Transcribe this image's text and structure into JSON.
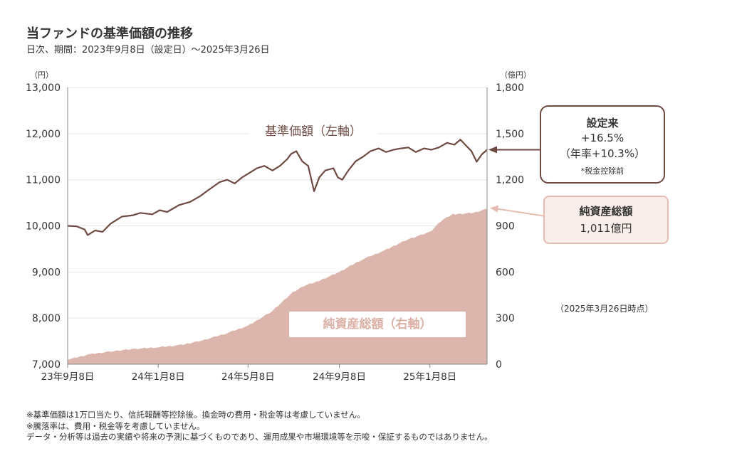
{
  "title": "当ファンドの基準価額の推移",
  "subtitle": "日次、期間：2023年9月8日（設定日）～2025年3月26日",
  "unit_left": "（円）",
  "unit_right": "（億円）",
  "series_label_nav": "基準価額（左軸）",
  "series_label_aum": "純資産総額（右軸）",
  "callout_return": {
    "heading": "設定来",
    "value": "+16.5%",
    "annualized": "（年率+10.3%）",
    "note": "*税金控除前"
  },
  "callout_aum": {
    "heading": "純資産総額",
    "value": "1,011億円"
  },
  "as_of": "（2025年3月26日時点）",
  "footnotes": [
    "※基準価額は1万口当たり、信託報酬等控除後。換金時の費用・税金等は考慮していません。",
    "※騰落率は、費用・税金等を考慮していません。",
    "データ・分析等は過去の実績や将来の予測に基づくものであり、運用成果や市場環境等を示唆・保証するものではありません。"
  ],
  "colors": {
    "nav_line": "#6e4a42",
    "aum_area": "#dcb6ac",
    "grid": "#e6e6e6"
  },
  "chart_data": {
    "type": "line",
    "x_ticks": [
      "23年9月8日",
      "24年1月8日",
      "24年5月8日",
      "24年9月8日",
      "25年1月8日"
    ],
    "x_tick_dates": [
      "2023-09-08",
      "2024-01-08",
      "2024-05-08",
      "2024-09-08",
      "2025-01-08"
    ],
    "x_range": [
      "2023-09-08",
      "2025-03-26"
    ],
    "y_left": {
      "label": "（円）",
      "ylim": [
        7000,
        13000
      ],
      "ticks": [
        7000,
        8000,
        9000,
        10000,
        11000,
        12000,
        13000
      ],
      "tick_labels": [
        "7,000",
        "8,000",
        "9,000",
        "10,000",
        "11,000",
        "12,000",
        "13,000"
      ]
    },
    "y_right": {
      "label": "（億円）",
      "ylim": [
        0,
        1800
      ],
      "ticks": [
        0,
        300,
        600,
        900,
        1200,
        1500,
        1800
      ],
      "tick_labels": [
        "0",
        "300",
        "600",
        "900",
        "1,200",
        "1,500",
        "1,800"
      ]
    },
    "grid": true,
    "series": [
      {
        "name": "基準価額（左軸）",
        "axis": "left",
        "style": "line",
        "points": [
          [
            "2023-09-08",
            10000
          ],
          [
            "2023-09-20",
            9990
          ],
          [
            "2023-10-01",
            9920
          ],
          [
            "2023-10-05",
            9800
          ],
          [
            "2023-10-15",
            9900
          ],
          [
            "2023-10-25",
            9870
          ],
          [
            "2023-11-05",
            10050
          ],
          [
            "2023-11-20",
            10200
          ],
          [
            "2023-12-05",
            10230
          ],
          [
            "2023-12-15",
            10280
          ],
          [
            "2023-12-31",
            10250
          ],
          [
            "2024-01-10",
            10340
          ],
          [
            "2024-01-20",
            10300
          ],
          [
            "2024-02-05",
            10450
          ],
          [
            "2024-02-20",
            10520
          ],
          [
            "2024-03-05",
            10650
          ],
          [
            "2024-03-15",
            10770
          ],
          [
            "2024-03-31",
            10950
          ],
          [
            "2024-04-10",
            11000
          ],
          [
            "2024-04-20",
            10920
          ],
          [
            "2024-04-30",
            11050
          ],
          [
            "2024-05-10",
            11150
          ],
          [
            "2024-05-20",
            11250
          ],
          [
            "2024-05-30",
            11300
          ],
          [
            "2024-06-10",
            11200
          ],
          [
            "2024-06-20",
            11300
          ],
          [
            "2024-06-30",
            11450
          ],
          [
            "2024-07-05",
            11560
          ],
          [
            "2024-07-12",
            11620
          ],
          [
            "2024-07-20",
            11400
          ],
          [
            "2024-07-28",
            11300
          ],
          [
            "2024-08-05",
            10750
          ],
          [
            "2024-08-12",
            11050
          ],
          [
            "2024-08-20",
            11200
          ],
          [
            "2024-08-31",
            11250
          ],
          [
            "2024-09-06",
            11050
          ],
          [
            "2024-09-12",
            11000
          ],
          [
            "2024-09-20",
            11200
          ],
          [
            "2024-09-30",
            11400
          ],
          [
            "2024-10-10",
            11500
          ],
          [
            "2024-10-20",
            11620
          ],
          [
            "2024-10-31",
            11680
          ],
          [
            "2024-11-10",
            11600
          ],
          [
            "2024-11-20",
            11650
          ],
          [
            "2024-11-30",
            11680
          ],
          [
            "2024-12-10",
            11700
          ],
          [
            "2024-12-20",
            11600
          ],
          [
            "2024-12-31",
            11680
          ],
          [
            "2025-01-10",
            11650
          ],
          [
            "2025-01-20",
            11700
          ],
          [
            "2025-01-31",
            11800
          ],
          [
            "2025-02-10",
            11760
          ],
          [
            "2025-02-18",
            11870
          ],
          [
            "2025-02-25",
            11750
          ],
          [
            "2025-03-05",
            11620
          ],
          [
            "2025-03-12",
            11390
          ],
          [
            "2025-03-19",
            11550
          ],
          [
            "2025-03-26",
            11650
          ]
        ]
      },
      {
        "name": "純資産総額（右軸）",
        "axis": "right",
        "style": "area",
        "points": [
          [
            "2023-09-08",
            30
          ],
          [
            "2023-10-08",
            65
          ],
          [
            "2023-11-08",
            85
          ],
          [
            "2023-12-08",
            100
          ],
          [
            "2024-01-08",
            110
          ],
          [
            "2024-02-08",
            125
          ],
          [
            "2024-03-08",
            155
          ],
          [
            "2024-04-08",
            200
          ],
          [
            "2024-05-08",
            250
          ],
          [
            "2024-06-08",
            340
          ],
          [
            "2024-07-08",
            470
          ],
          [
            "2024-07-25",
            515
          ],
          [
            "2024-08-08",
            535
          ],
          [
            "2024-09-08",
            600
          ],
          [
            "2024-10-08",
            680
          ],
          [
            "2024-11-08",
            740
          ],
          [
            "2024-12-08",
            810
          ],
          [
            "2025-01-08",
            860
          ],
          [
            "2025-01-25",
            940
          ],
          [
            "2025-02-08",
            975
          ],
          [
            "2025-03-08",
            985
          ],
          [
            "2025-03-26",
            1011
          ]
        ]
      }
    ]
  }
}
